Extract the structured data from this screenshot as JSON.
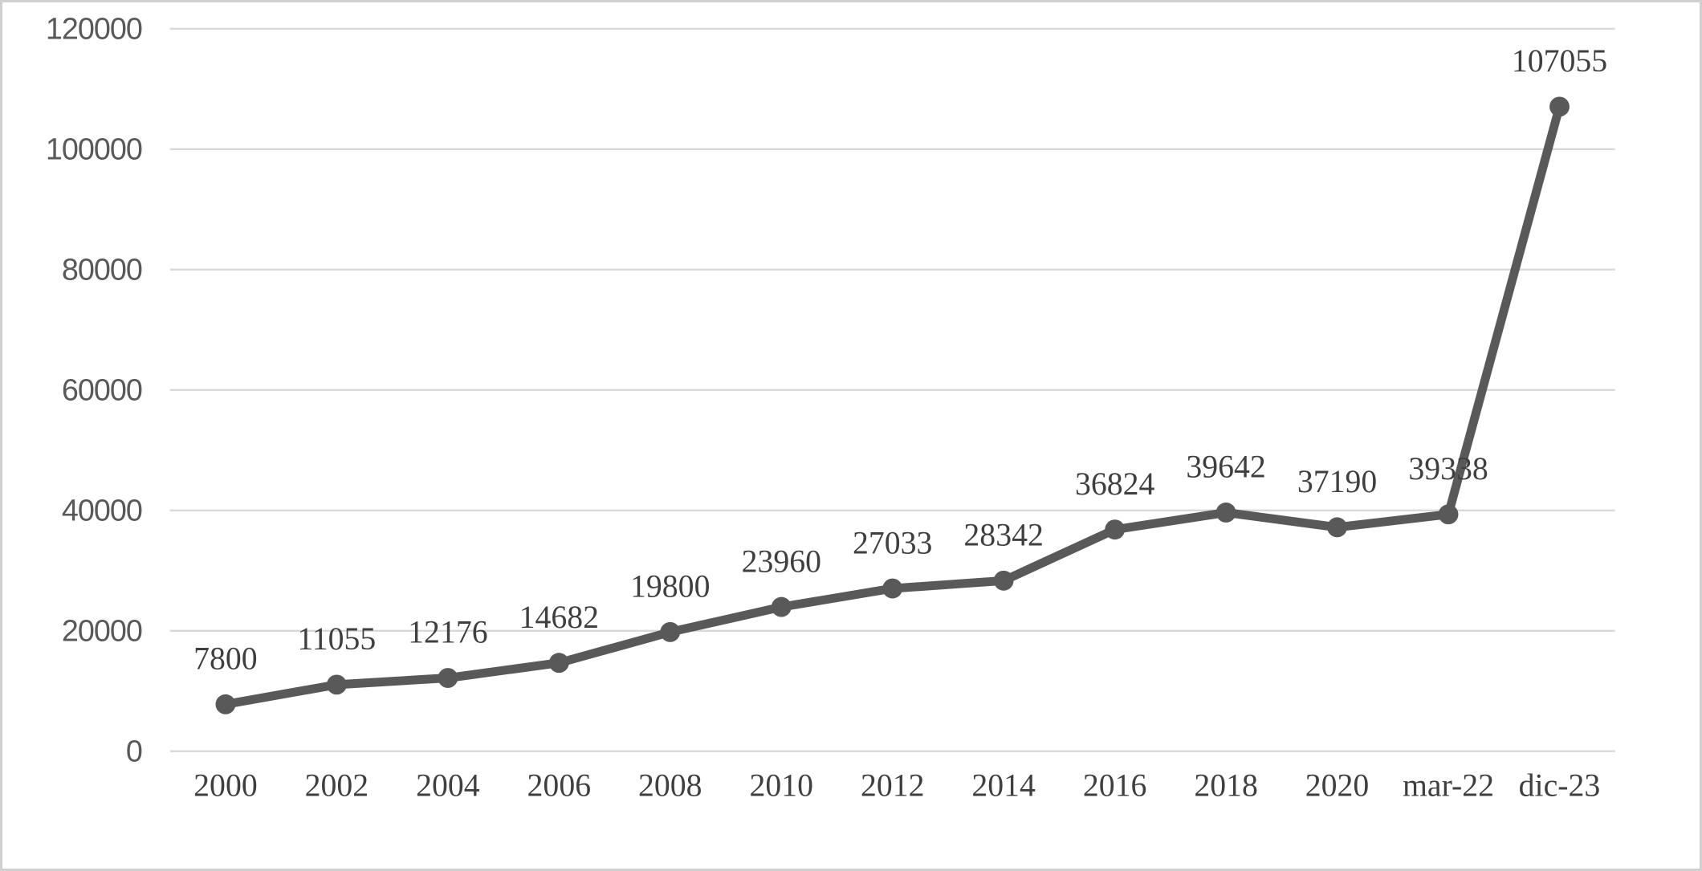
{
  "chart_data": {
    "type": "line",
    "title": "",
    "xlabel": "",
    "ylabel": "",
    "categories": [
      "2000",
      "2002",
      "2004",
      "2006",
      "2008",
      "2010",
      "2012",
      "2014",
      "2016",
      "2018",
      "2020",
      "mar-22",
      "dic-23"
    ],
    "series": [
      {
        "name": "",
        "values": [
          7800,
          11055,
          12176,
          14682,
          19800,
          23960,
          27033,
          28342,
          36824,
          39642,
          37190,
          39338,
          107055
        ],
        "data_labels": [
          "7800",
          "11055",
          "12176",
          "14682",
          "19800",
          "23960",
          "27033",
          "28342",
          "36824",
          "39642",
          "37190",
          "39338",
          "107055"
        ]
      }
    ],
    "ylim": [
      0,
      120000
    ],
    "ytick_interval": 20000,
    "yticks": [
      "0",
      "20000",
      "40000",
      "60000",
      "80000",
      "100000",
      "120000"
    ],
    "grid": true,
    "legend": false,
    "colors": {
      "line": "#595959",
      "marker": "#595959",
      "gridline": "#d9d9d9",
      "serif_text": "#3f3f3f",
      "axis_text": "#595959",
      "background": "#ffffff",
      "frame_border": "#d0d0d0"
    }
  }
}
